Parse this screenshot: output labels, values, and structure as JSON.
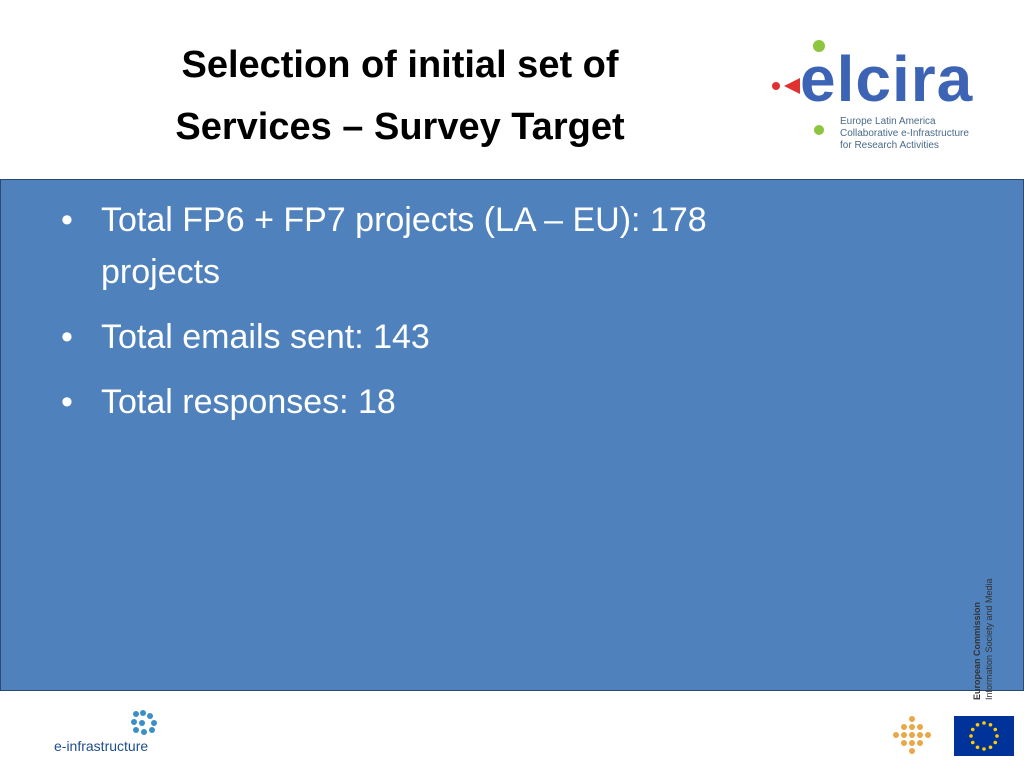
{
  "header": {
    "title_lines": [
      "Selection of initial set of",
      "Services – Survey Target"
    ],
    "logo": {
      "name": "elcira",
      "tagline": [
        "Europe Latin America",
        "Collaborative e-Infrastructure",
        "for Research Activities"
      ]
    }
  },
  "bullets": [
    "Total FP6 + FP7 projects (LA – EU): 178 projects",
    "Total emails sent: 143",
    "Total responses: 18"
  ],
  "footer": {
    "left_logo": "e-infrastructure",
    "commission": [
      "European Commission",
      "Information Society and Media"
    ]
  }
}
